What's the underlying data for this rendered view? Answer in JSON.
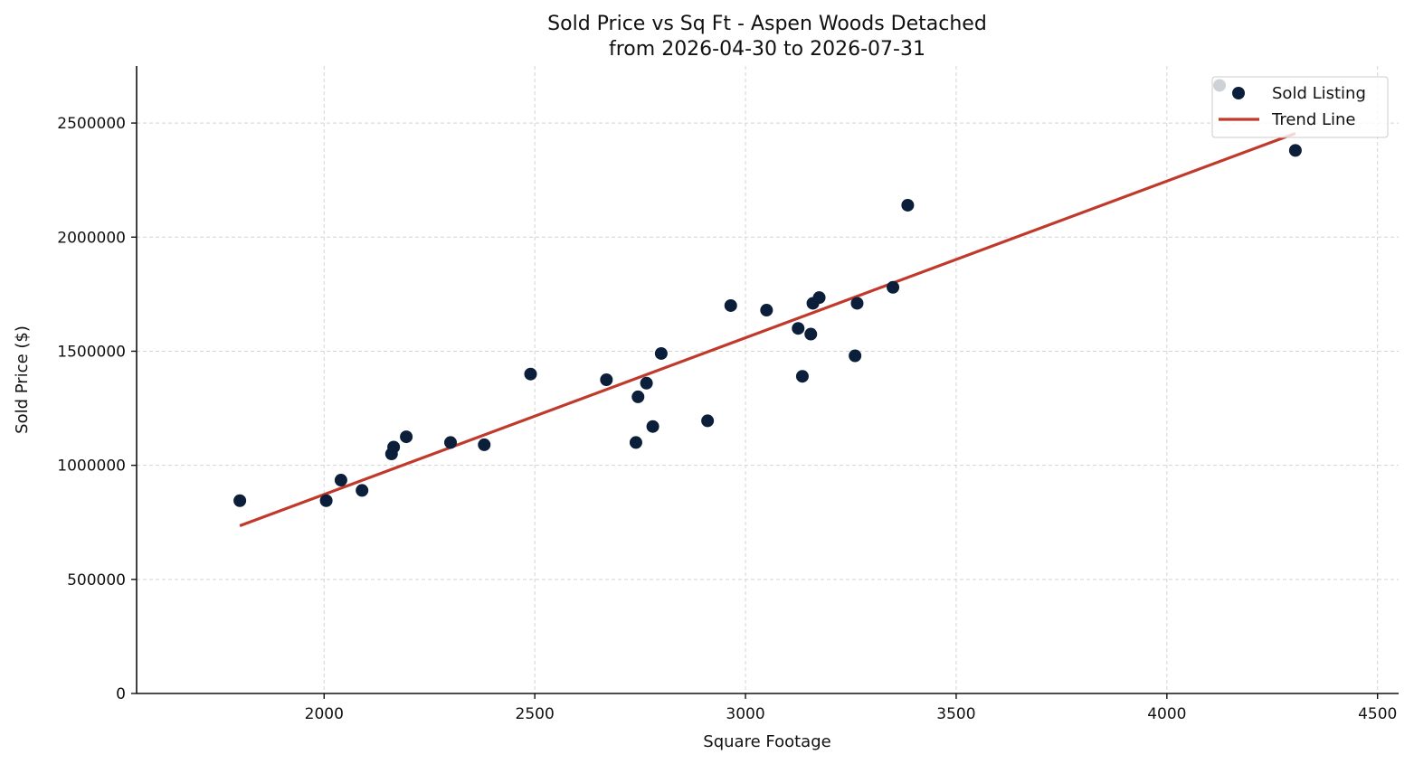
{
  "colors": {
    "point": "#0b1e3a",
    "trend": "#c0392b",
    "grid": "#d4d4d4",
    "axis": "#111111"
  },
  "chart_data": {
    "type": "scatter",
    "title": "Sold Price vs Sq Ft - Aspen Woods Detached",
    "subtitle": "from 2026-04-30 to 2026-07-31",
    "xlabel": "Square Footage",
    "ylabel": "Sold Price ($)",
    "xlim": [
      1555,
      4550
    ],
    "ylim": [
      0,
      2750000
    ],
    "xticks": [
      2000,
      2500,
      3000,
      3500,
      4000,
      4500
    ],
    "yticks": [
      0,
      500000,
      1000000,
      1500000,
      2000000,
      2500000
    ],
    "grid": true,
    "legend_position": "top-right",
    "legend": [
      {
        "label": "Sold Listing",
        "kind": "marker"
      },
      {
        "label": "Trend Line",
        "kind": "line"
      }
    ],
    "series": [
      {
        "name": "Sold Listing",
        "type": "scatter",
        "points": [
          {
            "x": 1800,
            "y": 845000
          },
          {
            "x": 2005,
            "y": 845000
          },
          {
            "x": 2040,
            "y": 935000
          },
          {
            "x": 2090,
            "y": 890000
          },
          {
            "x": 2160,
            "y": 1050000
          },
          {
            "x": 2165,
            "y": 1080000
          },
          {
            "x": 2195,
            "y": 1125000
          },
          {
            "x": 2300,
            "y": 1100000
          },
          {
            "x": 2380,
            "y": 1090000
          },
          {
            "x": 2490,
            "y": 1400000
          },
          {
            "x": 2670,
            "y": 1375000
          },
          {
            "x": 2740,
            "y": 1100000
          },
          {
            "x": 2745,
            "y": 1300000
          },
          {
            "x": 2765,
            "y": 1360000
          },
          {
            "x": 2780,
            "y": 1170000
          },
          {
            "x": 2800,
            "y": 1490000
          },
          {
            "x": 2910,
            "y": 1195000
          },
          {
            "x": 2965,
            "y": 1700000
          },
          {
            "x": 3050,
            "y": 1680000
          },
          {
            "x": 3125,
            "y": 1600000
          },
          {
            "x": 3135,
            "y": 1390000
          },
          {
            "x": 3155,
            "y": 1575000
          },
          {
            "x": 3160,
            "y": 1710000
          },
          {
            "x": 3175,
            "y": 1735000
          },
          {
            "x": 3260,
            "y": 1480000
          },
          {
            "x": 3265,
            "y": 1710000
          },
          {
            "x": 3350,
            "y": 1780000
          },
          {
            "x": 3385,
            "y": 2140000
          },
          {
            "x": 4125,
            "y": 2665000
          },
          {
            "x": 4305,
            "y": 2380000
          }
        ]
      },
      {
        "name": "Trend Line",
        "type": "line",
        "points": [
          {
            "x": 1800,
            "y": 735000
          },
          {
            "x": 4305,
            "y": 2455000
          }
        ]
      }
    ]
  }
}
